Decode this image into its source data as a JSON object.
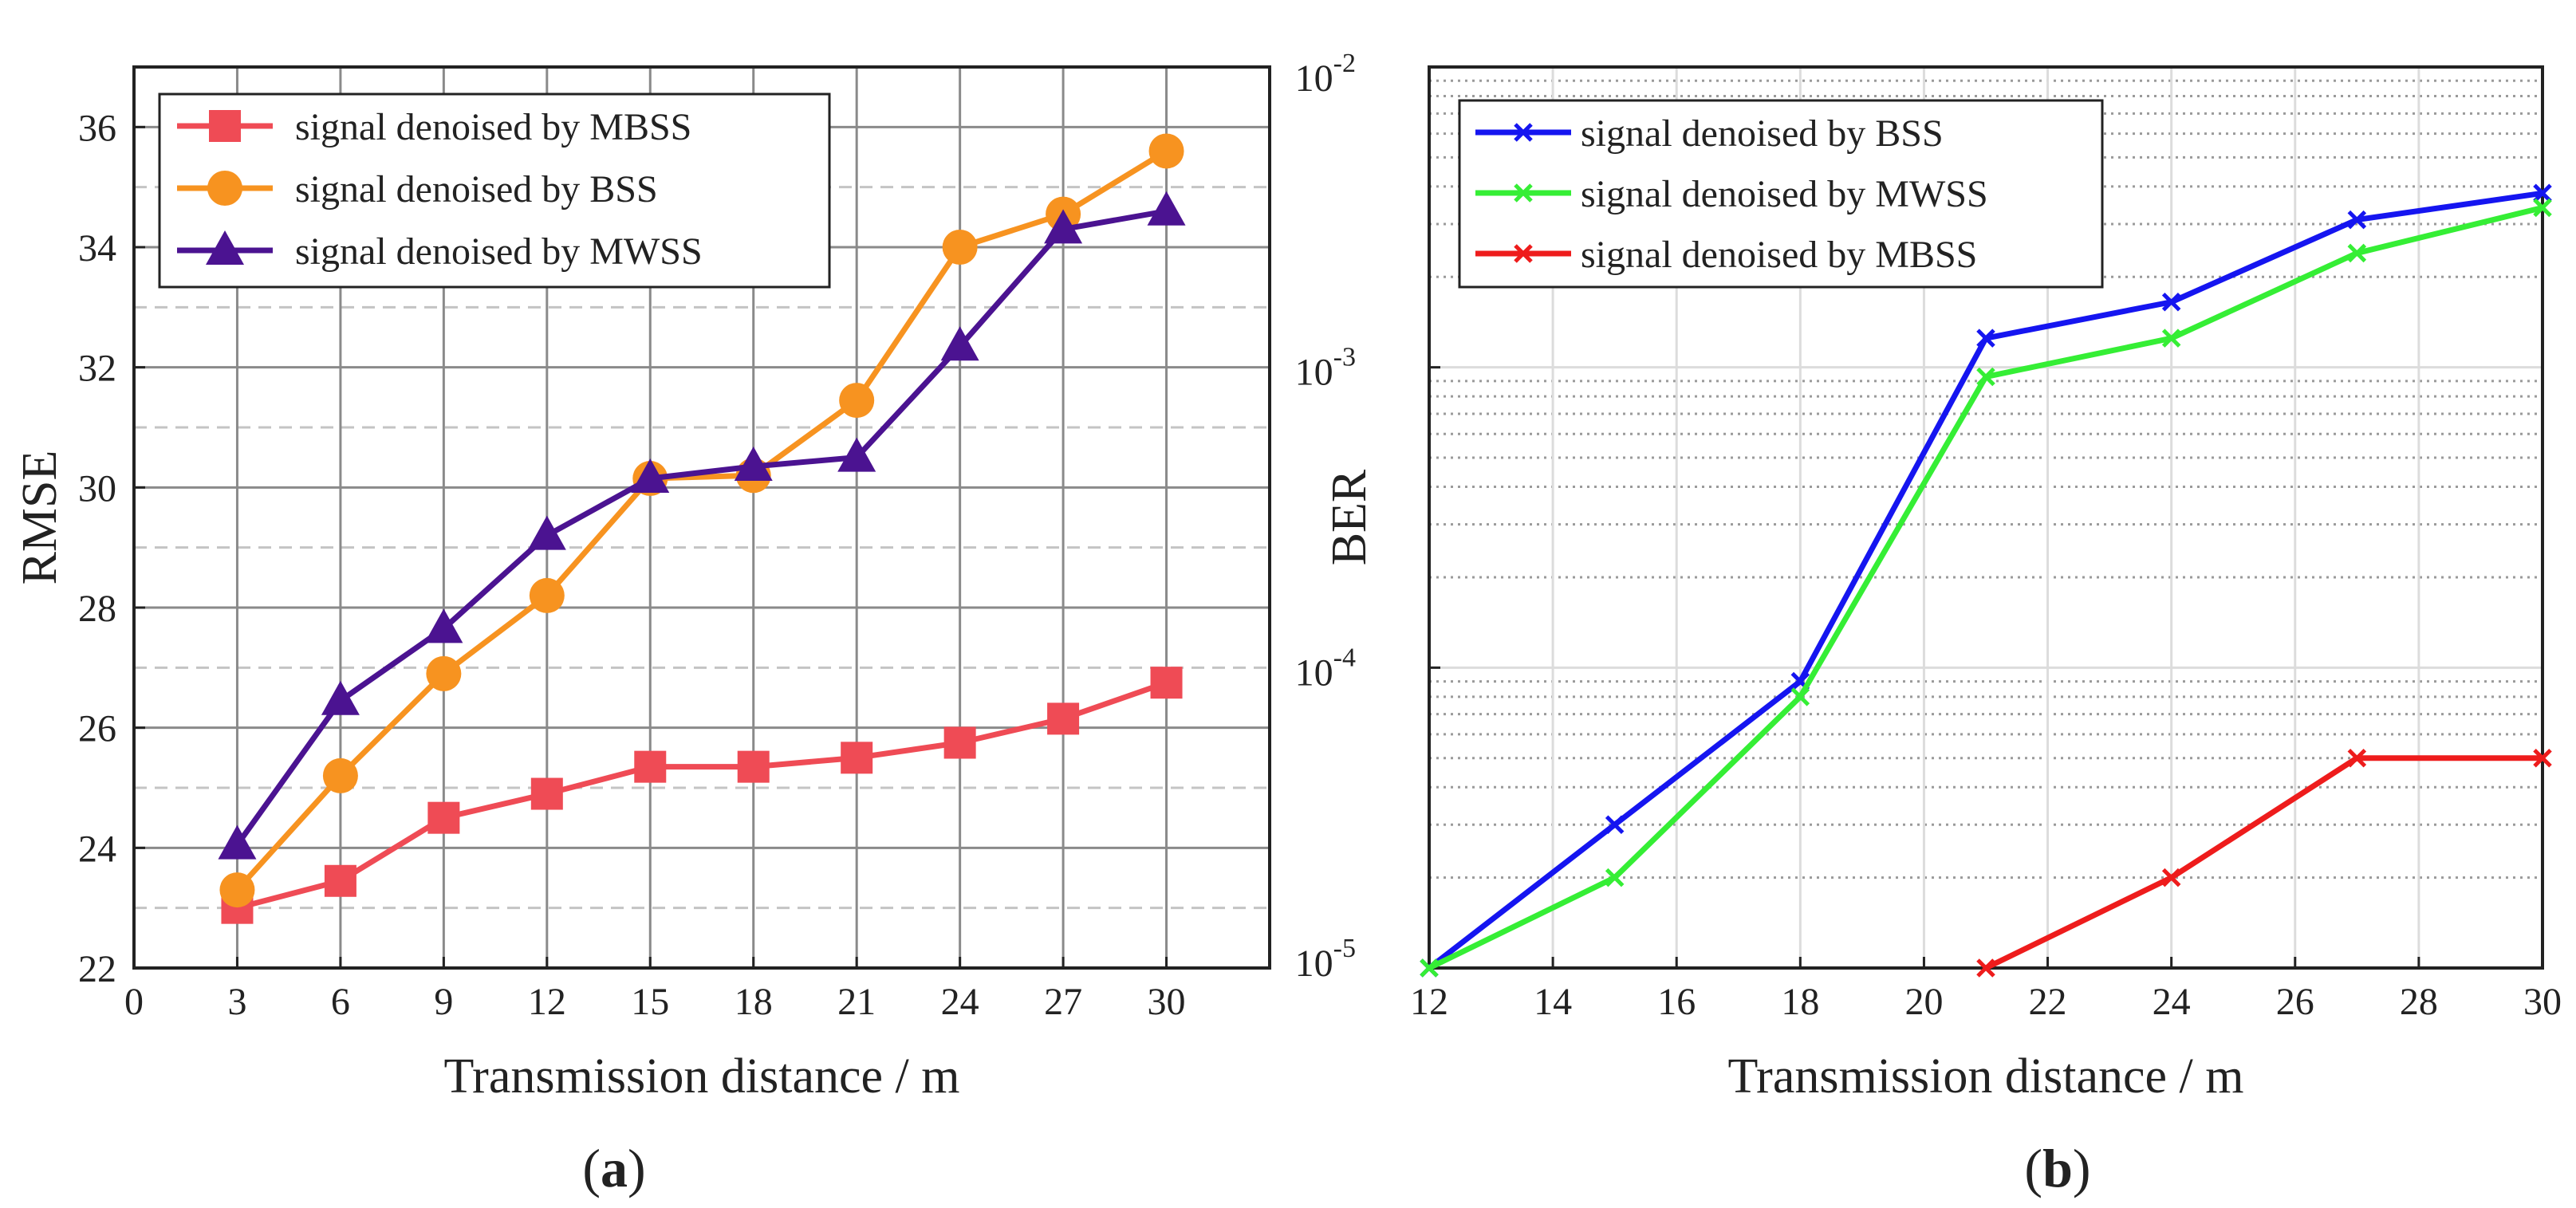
{
  "chart_data": [
    {
      "type": "line",
      "panel": "a",
      "panel_label": "a",
      "xlabel": "Transmission distance / m",
      "ylabel": "RMSE",
      "xlim": [
        0,
        33
      ],
      "ylim": [
        22,
        37
      ],
      "x_ticks": [
        0,
        3,
        6,
        9,
        12,
        15,
        18,
        21,
        24,
        27,
        30
      ],
      "y_ticks": [
        22,
        24,
        26,
        28,
        30,
        32,
        34,
        36
      ],
      "y_minor_ticks": [
        23,
        25,
        27,
        29,
        31,
        33,
        35
      ],
      "grid": true,
      "legend_position": "top-left",
      "x": [
        3,
        6,
        9,
        12,
        15,
        18,
        21,
        24,
        27,
        30
      ],
      "series": [
        {
          "name": "signal denoised by MBSS",
          "marker": "square",
          "color": "#ef4b55",
          "values": [
            23.0,
            23.45,
            24.5,
            24.9,
            25.35,
            25.35,
            25.5,
            25.75,
            26.15,
            26.75
          ]
        },
        {
          "name": "signal denoised by BSS",
          "marker": "circle",
          "color": "#f79320",
          "values": [
            23.3,
            25.2,
            26.9,
            28.2,
            30.15,
            30.2,
            31.45,
            34.0,
            34.55,
            35.6
          ]
        },
        {
          "name": "signal denoised by MWSS",
          "marker": "triangle",
          "color": "#4b1391",
          "values": [
            24.05,
            26.45,
            27.65,
            29.2,
            30.15,
            30.35,
            30.5,
            32.35,
            34.3,
            34.6
          ]
        }
      ]
    },
    {
      "type": "line",
      "panel": "b",
      "panel_label": "b",
      "xlabel": "Transmission distance / m",
      "ylabel": "BER",
      "yscale": "log",
      "xlim": [
        12,
        30
      ],
      "ylim": [
        1e-05,
        0.01
      ],
      "x_ticks": [
        12,
        14,
        16,
        18,
        20,
        22,
        24,
        26,
        28,
        30
      ],
      "y_ticks": [
        {
          "value": 0.01,
          "base": "10",
          "exp": "-2"
        },
        {
          "value": 0.001,
          "base": "10",
          "exp": "-3"
        },
        {
          "value": 0.0001,
          "base": "10",
          "exp": "-4"
        },
        {
          "value": 1e-05,
          "base": "10",
          "exp": "-5"
        }
      ],
      "grid": true,
      "legend_position": "top-left",
      "series": [
        {
          "name": "signal denoised by BSS",
          "marker": "x",
          "color": "#1515f0",
          "x": [
            12,
            15,
            18,
            21,
            24,
            27,
            30
          ],
          "values": [
            1e-05,
            3e-05,
            9e-05,
            0.00125,
            0.00165,
            0.0031,
            0.0038
          ]
        },
        {
          "name": "signal denoised by MWSS",
          "marker": "x",
          "color": "#35ee35",
          "x": [
            12,
            15,
            18,
            21,
            24,
            27,
            30
          ],
          "values": [
            1e-05,
            2e-05,
            8e-05,
            0.00093,
            0.00125,
            0.0024,
            0.0034
          ]
        },
        {
          "name": "signal denoised by MBSS",
          "marker": "x",
          "color": "#ee1c1c",
          "x": [
            21,
            24,
            27,
            30
          ],
          "values": [
            1e-05,
            2e-05,
            5e-05,
            5e-05
          ]
        }
      ]
    }
  ]
}
